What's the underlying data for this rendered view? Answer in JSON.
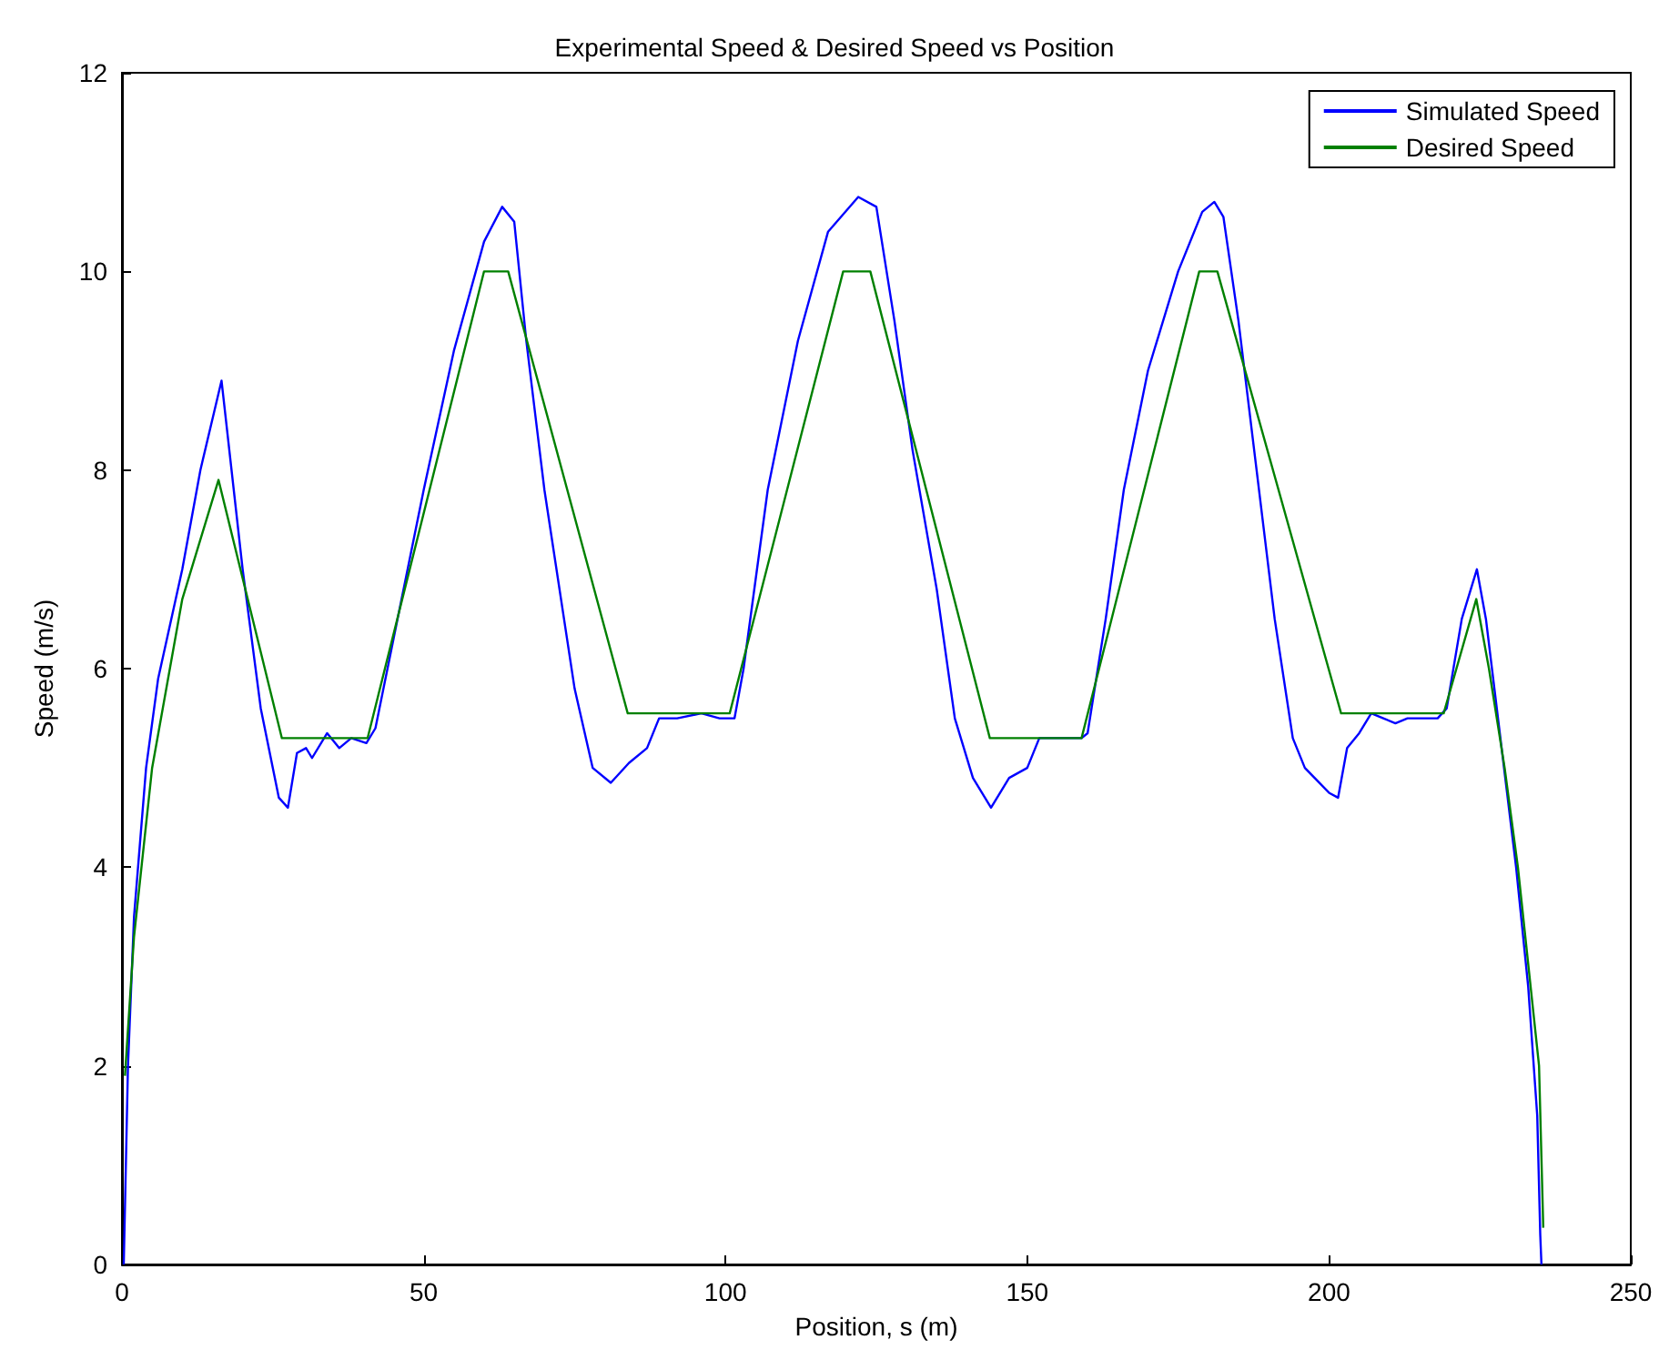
{
  "chart_data": {
    "type": "line",
    "title": "Experimental Speed & Desired Speed vs Position",
    "xlabel": "Position, s (m)",
    "ylabel": "Speed (m/s)",
    "xlim": [
      0,
      250
    ],
    "xticks": [
      0,
      50,
      100,
      150,
      200,
      250
    ],
    "ylim": [
      0,
      12
    ],
    "yticks": [
      0,
      2,
      4,
      6,
      8,
      10,
      12
    ],
    "grid": false,
    "legend": "top right",
    "marker": "none",
    "line_style": "solid",
    "series": [
      {
        "name": "Simulated Speed",
        "color": "#0000ff",
        "x": [
          0.3,
          1,
          2,
          4,
          6,
          10,
          13,
          16.5,
          20,
          23,
          26,
          27.5,
          29,
          30.5,
          31.5,
          34,
          36,
          38,
          40.5,
          42,
          45,
          50,
          55,
          60,
          63,
          65,
          67,
          70,
          75,
          78,
          81,
          84,
          87,
          89,
          92,
          96,
          99,
          101.5,
          103,
          107,
          112,
          117,
          122,
          125,
          128,
          131,
          135,
          138,
          141,
          144,
          147,
          150,
          152,
          159,
          160,
          163,
          166,
          170,
          175,
          179,
          181,
          182.5,
          185,
          188,
          191,
          194,
          196,
          200,
          201.5,
          203,
          205,
          207,
          209,
          211,
          213,
          218,
          219.5,
          222,
          224.5,
          226,
          228,
          231,
          233,
          234.5,
          235,
          235.2
        ],
        "values": [
          0,
          2,
          3.5,
          5,
          5.9,
          7,
          8,
          8.9,
          7,
          5.6,
          4.7,
          4.6,
          5.15,
          5.2,
          5.1,
          5.35,
          5.2,
          5.3,
          5.25,
          5.4,
          6.3,
          7.8,
          9.2,
          10.3,
          10.65,
          10.5,
          9.3,
          7.8,
          5.8,
          5,
          4.85,
          5.05,
          5.2,
          5.5,
          5.5,
          5.55,
          5.5,
          5.5,
          6,
          7.8,
          9.3,
          10.4,
          10.75,
          10.65,
          9.5,
          8.2,
          6.8,
          5.5,
          4.9,
          4.6,
          4.9,
          5,
          5.3,
          5.3,
          5.35,
          6.5,
          7.8,
          9,
          10,
          10.6,
          10.7,
          10.55,
          9.5,
          8,
          6.5,
          5.3,
          5,
          4.75,
          4.7,
          5.2,
          5.35,
          5.55,
          5.5,
          5.45,
          5.5,
          5.5,
          5.6,
          6.5,
          7,
          6.5,
          5.5,
          4,
          2.8,
          1.5,
          0.3,
          0
        ]
      },
      {
        "name": "Desired Speed",
        "color": "#008000",
        "x": [
          0.5,
          2,
          5,
          10,
          16,
          26.5,
          40.7,
          60,
          64,
          83.8,
          100.7,
          119.5,
          124,
          143.8,
          159,
          178.5,
          181.5,
          202,
          219,
          224.4,
          226.5,
          229.1,
          231.3,
          234.8,
          235.5
        ],
        "values": [
          1.9,
          3.3,
          5,
          6.7,
          7.9,
          5.3,
          5.3,
          10,
          10,
          5.55,
          5.55,
          10,
          10,
          5.3,
          5.3,
          10,
          10,
          5.55,
          5.55,
          6.7,
          6,
          5,
          4,
          2,
          0.37
        ]
      }
    ]
  }
}
